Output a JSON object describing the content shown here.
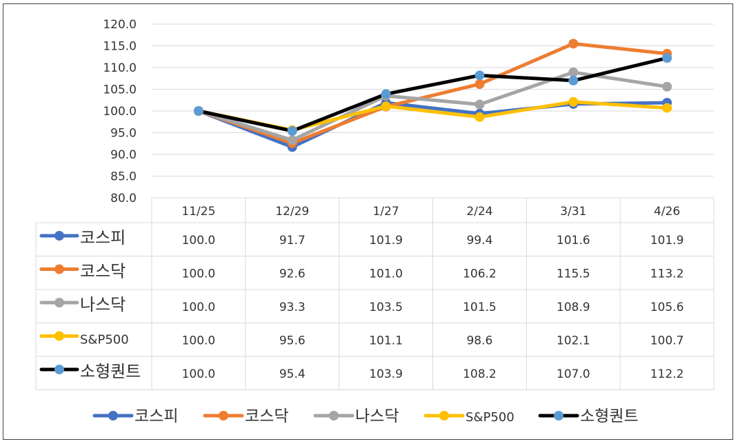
{
  "chart_data": {
    "type": "line",
    "title": "",
    "xlabel": "",
    "ylabel": "",
    "ylim": [
      80.0,
      120.0
    ],
    "ytick_step": 5,
    "ytick_labels": [
      "80.0",
      "85.0",
      "90.0",
      "95.0",
      "100.0",
      "105.0",
      "110.0",
      "115.0",
      "120.0"
    ],
    "categories": [
      "11/25",
      "12/29",
      "1/27",
      "2/24",
      "3/31",
      "4/26"
    ],
    "series": [
      {
        "name": "코스피",
        "color": "#4472C4",
        "marker_color": "#4472C4",
        "values": [
          100.0,
          91.7,
          101.9,
          99.4,
          101.6,
          101.9
        ],
        "labels": [
          "100.0",
          "91.7",
          "101.9",
          "99.4",
          "101.6",
          "101.9"
        ]
      },
      {
        "name": "코스닥",
        "color": "#ED7D31",
        "marker_color": "#ED7D31",
        "values": [
          100.0,
          92.6,
          101.0,
          106.2,
          115.5,
          113.2
        ],
        "labels": [
          "100.0",
          "92.6",
          "101.0",
          "106.2",
          "115.5",
          "113.2"
        ]
      },
      {
        "name": "나스닥",
        "color": "#A5A5A5",
        "marker_color": "#A5A5A5",
        "values": [
          100.0,
          93.3,
          103.5,
          101.5,
          108.9,
          105.6
        ],
        "labels": [
          "100.0",
          "93.3",
          "103.5",
          "101.5",
          "108.9",
          "105.6"
        ]
      },
      {
        "name": "S&P500",
        "color": "#FFC000",
        "marker_color": "#FFC000",
        "values": [
          100.0,
          95.6,
          101.1,
          98.6,
          102.1,
          100.7
        ],
        "labels": [
          "100.0",
          "95.6",
          "101.1",
          "98.6",
          "102.1",
          "100.7"
        ]
      },
      {
        "name": "소형퀀트",
        "color": "#000000",
        "marker_color": "#5B9BD5",
        "values": [
          100.0,
          95.4,
          103.9,
          108.2,
          107.0,
          112.2
        ],
        "labels": [
          "100.0",
          "95.4",
          "103.9",
          "108.2",
          "107.0",
          "112.2"
        ]
      }
    ],
    "legend_position": "bottom",
    "data_table": true,
    "grid": true
  },
  "colors": {
    "gridline": "#D9D9D9",
    "table_border": "#D9D9D9",
    "text": "#333333"
  }
}
